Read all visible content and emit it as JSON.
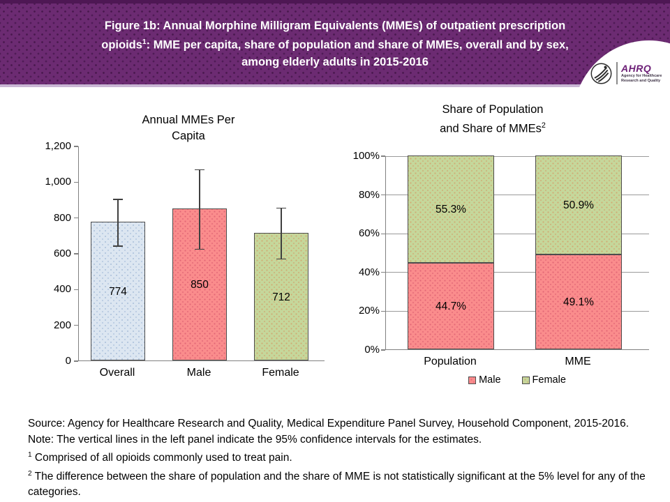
{
  "header": {
    "title_line1": "Figure 1b: Annual Morphine Milligram Equivalents (MMEs) of outpatient prescription",
    "title_line2_pre": "opioids",
    "title_line2_sup": "1",
    "title_line2_post": ": MME per capita, share of population and share of MMEs, overall and by sex,",
    "title_line3": "among elderly adults in 2015-2016",
    "logo": {
      "acronym": "AHRQ",
      "tagline_line1": "Agency for Healthcare",
      "tagline_line2": "Research and Quality"
    }
  },
  "chart_data": [
    {
      "type": "bar",
      "title_line1": "Annual MMEs Per",
      "title_line2": "Capita",
      "categories": [
        "Overall",
        "Male",
        "Female"
      ],
      "values": [
        774,
        850,
        712
      ],
      "ci_low": [
        643,
        625,
        570
      ],
      "ci_high": [
        905,
        1070,
        855
      ],
      "bar_colors": [
        "#dce6f1",
        "#fa8c8c",
        "#c5d79b"
      ],
      "ylim": [
        0,
        1200
      ],
      "yticks": [
        "0",
        "200",
        "400",
        "600",
        "800",
        "1,000",
        "1,200"
      ],
      "grid": false,
      "note": "vertical lines are 95% confidence intervals"
    },
    {
      "type": "stacked-bar",
      "title_line1": "Share of Population",
      "title_line2_pre": "and Share of MMEs",
      "title_superscript": "2",
      "categories": [
        "Population",
        "MME"
      ],
      "series": [
        {
          "name": "Male",
          "color": "#fa8c8c",
          "values": [
            44.7,
            49.1
          ],
          "labels": [
            "44.7%",
            "49.1%"
          ]
        },
        {
          "name": "Female",
          "color": "#c5d79b",
          "values": [
            55.3,
            50.9
          ],
          "labels": [
            "55.3%",
            "50.9%"
          ]
        }
      ],
      "ylim": [
        0,
        100
      ],
      "yticks": [
        "0%",
        "20%",
        "40%",
        "60%",
        "80%",
        "100%"
      ],
      "grid": true,
      "legend_position": "bottom"
    }
  ],
  "footer": {
    "source": "Source: Agency for Healthcare Research and Quality, Medical Expenditure Panel Survey, Household Component, 2015-2016.",
    "note": "Note: The vertical lines in the left panel indicate the 95% confidence intervals for the estimates.",
    "footnote1_sup": "1",
    "footnote1_text": " Comprised of all opioids commonly used to treat pain.",
    "footnote2_sup": "2",
    "footnote2_text": " The difference between the share of population and the share of MME is not statistically significant at the 5% level for any of the categories."
  }
}
